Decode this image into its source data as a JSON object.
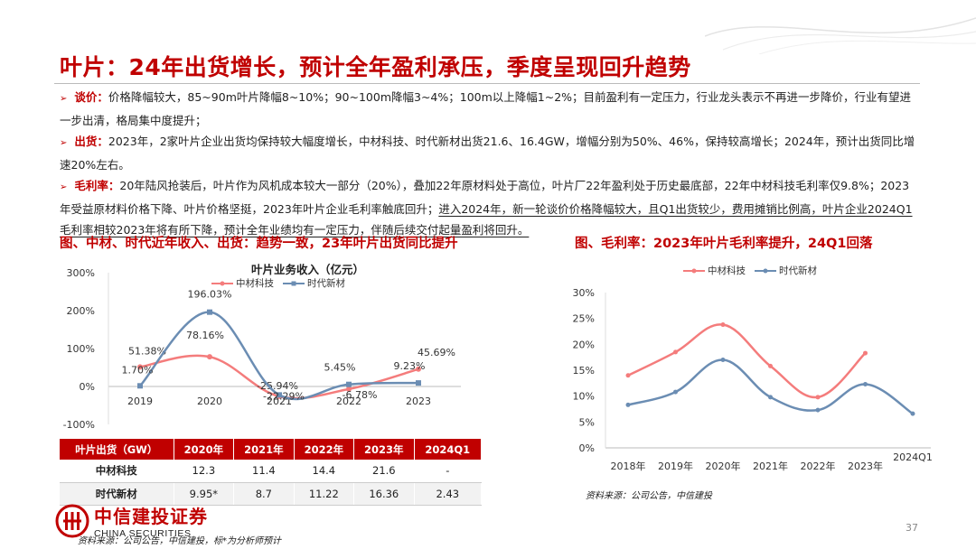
{
  "title": "叶片：24年出货增长，预计全年盈利承压，季度呈现回升趋势",
  "bullets": [
    {
      "key": "谈价：",
      "text": "价格降幅较大，85~90m叶片降幅8~10%；90~100m降幅3~4%；100m以上降幅1~2%；目前盈利有一定压力，行业龙头表示不再进一步降价，行业有望进一步出清，格局集中度提升；",
      "underlined": ""
    },
    {
      "key": "出货：",
      "text": "2023年，2家叶片企业出货均保持较大幅度增长，中材科技、时代新材出货21.6、16.4GW，增幅分别为50%、46%，保持较高增长；2024年，预计出货同比增速20%左右。",
      "underlined": ""
    },
    {
      "key": "毛利率：",
      "text": "20年陆风抢装后，叶片作为风机成本较大一部分（20%），叠加22年原材料处于高位，叶片厂22年盈利处于历史最底部，22年中材科技毛利率仅9.8%；2023年受益原材料价格下降、叶片价格坚挺，2023年叶片企业毛利率触底回升；",
      "underlined": "进入2024年，新一轮谈价价格降幅较大，且Q1出货较少，费用摊销比例高，叶片企业2024Q1毛利率相较2023年将有所下降，预计全年业绩均有一定压力，伴随后续交付起量盈利将回升。"
    }
  ],
  "fig_left_title": "图、中材、时代近年收入、出货：趋势一致，23年叶片出货同比提升",
  "fig_right_title": "图、毛利率：2023年叶片毛利率提升，24Q1回落",
  "chart_data": [
    {
      "type": "line",
      "title": "叶片业务收入（亿元）",
      "categories": [
        "2019",
        "2020",
        "2021",
        "2022",
        "2023"
      ],
      "series": [
        {
          "name": "中材科技",
          "color": "#f47c7c",
          "values": [
            51.38,
            78.16,
            -25.94,
            -6.78,
            45.69
          ],
          "labels": [
            "51.38%",
            "78.16%",
            "-25.94%",
            "-6.78%",
            "45.69%"
          ]
        },
        {
          "name": "时代新材",
          "color": "#6b8db3",
          "values": [
            1.7,
            196.03,
            -22.29,
            5.45,
            9.23
          ],
          "labels": [
            "1.70%",
            "196.03%",
            "-22.29%",
            "5.45%",
            "9.23%"
          ]
        }
      ],
      "yticks": [
        "300%",
        "200%",
        "100%",
        "0%",
        "-100%"
      ],
      "ylim": [
        -100,
        300
      ],
      "legend": "top"
    },
    {
      "type": "line",
      "title": "",
      "categories": [
        "2018年",
        "2019年",
        "2020年",
        "2021年",
        "2022年",
        "2023年",
        "2024Q1"
      ],
      "series": [
        {
          "name": "中材科技",
          "color": "#f47c7c",
          "values": [
            14,
            18.5,
            23.8,
            15.8,
            9.8,
            18.3,
            null
          ]
        },
        {
          "name": "时代新材",
          "color": "#6b8db3",
          "values": [
            8.3,
            10.8,
            17,
            9.8,
            7.3,
            12.3,
            6.6
          ]
        }
      ],
      "yticks": [
        "30%",
        "25%",
        "20%",
        "15%",
        "10%",
        "5%",
        "0%"
      ],
      "ylim": [
        0,
        30
      ],
      "legend": "top"
    }
  ],
  "table": {
    "headers": [
      "叶片出货（GW）",
      "2020年",
      "2021年",
      "2022年",
      "2023年",
      "2024Q1"
    ],
    "rows": [
      [
        "中材科技",
        "12.3",
        "11.4",
        "14.4",
        "21.6",
        "-"
      ],
      [
        "时代新材",
        "9.95*",
        "8.7",
        "11.22",
        "16.36",
        "2.43"
      ]
    ]
  },
  "source_left": "资料来源：公司公告，中信建投，标*为分析师预计",
  "source_right": "资料来源：公司公告，中信建投",
  "logo": {
    "cn": "中信建投证券",
    "en": "CHINA SECURITIES"
  },
  "page_number": "37",
  "colors": {
    "accent": "#c00000",
    "series1": "#f47c7c",
    "series2": "#6b8db3"
  }
}
